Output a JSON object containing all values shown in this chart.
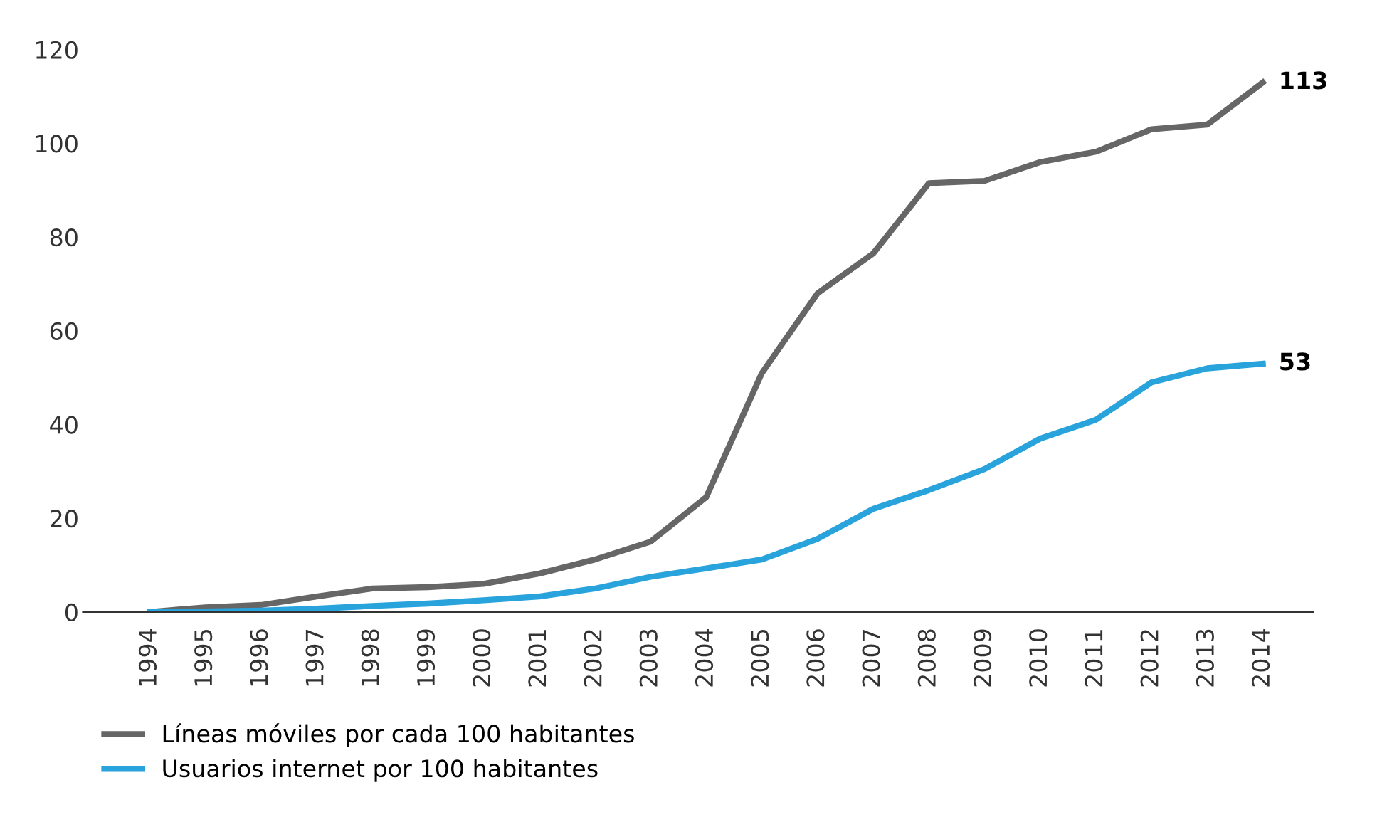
{
  "chart_data": {
    "type": "line",
    "categories": [
      "1994",
      "1995",
      "1996",
      "1997",
      "1998",
      "1999",
      "2000",
      "2001",
      "2002",
      "2003",
      "2004",
      "2005",
      "2006",
      "2007",
      "2008",
      "2009",
      "2010",
      "2011",
      "2012",
      "2013",
      "2014"
    ],
    "series": [
      {
        "name": "Líneas móviles por cada 100 habitantes",
        "color": "#666666",
        "values": [
          0,
          1,
          1.5,
          3.3,
          5,
          5.3,
          6,
          8.2,
          11.2,
          15,
          24.5,
          51,
          68,
          76.5,
          91.5,
          92,
          96,
          98.2,
          103,
          104,
          113
        ],
        "value_labels": [
          null,
          null,
          null,
          null,
          null,
          null,
          null,
          null,
          null,
          null,
          null,
          null,
          null,
          null,
          null,
          null,
          null,
          null,
          null,
          null,
          "113"
        ]
      },
      {
        "name": "Usuarios internet por 100 habitantes",
        "color": "#29a3dc",
        "values": [
          0,
          0.1,
          0.3,
          0.7,
          1.3,
          1.8,
          2.5,
          3.3,
          5,
          7.5,
          9.3,
          11.2,
          15.6,
          22,
          26,
          30.5,
          37,
          41,
          49,
          52,
          53
        ],
        "value_labels": [
          null,
          null,
          null,
          null,
          null,
          null,
          null,
          null,
          null,
          null,
          null,
          null,
          null,
          null,
          null,
          null,
          null,
          null,
          null,
          null,
          "53"
        ]
      }
    ],
    "ylim": [
      0,
      120
    ],
    "yticks": [
      0,
      20,
      40,
      60,
      80,
      100,
      120
    ],
    "grid": false,
    "legend": "bottom left",
    "marker": "none",
    "line_style": "solid"
  }
}
